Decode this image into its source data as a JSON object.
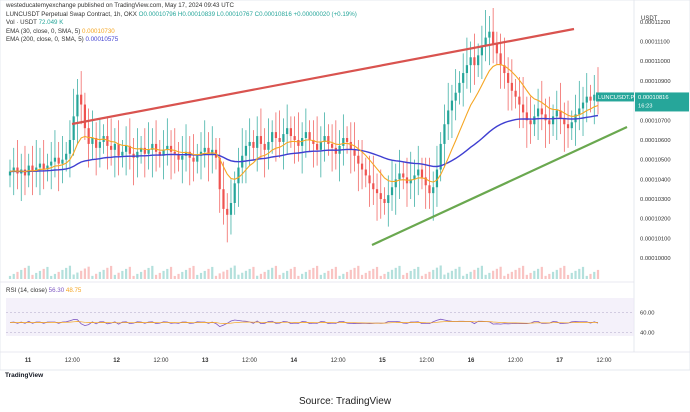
{
  "watermark": "westeducatemyexchange published on TradingView.com, May 17, 2024 09:43 UTC",
  "legend": {
    "symbol": "LUNCUSDT Perpetual Swap Contract, 1h, OKX",
    "ohlc": "O0.00010796 H0.00010839 L0.00010767 C0.00010816 +0.00000020 (+0.19%)",
    "vol": "Vol · USDT",
    "vol_value": "72.049 K",
    "ema30": "EMA (30, close, 0, SMA, 5)",
    "ema30_value": "0.00010730",
    "ema200": "EMA (200, close, 0, SMA, 5)",
    "ema200_value": "0.00010575"
  },
  "rsi": {
    "label": "RSI (14, close)",
    "value1": "56.30",
    "value2": "48.75"
  },
  "price_tag": {
    "symbol": "LUNCUSDT.P",
    "value": "0.00010816",
    "countdown": "16:23"
  },
  "currency": "USDT",
  "footer": {
    "logo": "TradingView",
    "source": "Source: TradingView"
  },
  "colors": {
    "up": "#26a69a",
    "down": "#ef5350",
    "ema30": "#f5a623",
    "ema200": "#3f3fd1",
    "resistance": "#d9534f",
    "support": "#6aa84f",
    "tag": "#26a69a"
  },
  "chart_data": {
    "type": "candlestick",
    "x_ticks": [
      "11",
      "12:00",
      "12",
      "12:00",
      "13",
      "12:00",
      "14",
      "12:00",
      "15",
      "12:00",
      "16",
      "12:00",
      "17",
      "12:00"
    ],
    "y_ticks": [
      "0.00011200",
      "0.00011100",
      "0.00011000",
      "0.00010900",
      "0.00010800",
      "0.00010700",
      "0.00010600",
      "0.00010500",
      "0.00010400",
      "0.00010300",
      "0.00010200",
      "0.00010100",
      "0.00010000"
    ],
    "ylim": [
      9.96e-05,
      0.0001125
    ],
    "rsi_ticks": [
      "60.00",
      "40.00"
    ],
    "rsi_ylim": [
      25,
      80
    ],
    "close": [
      0.0001044,
      0.0001046,
      0.0001043,
      0.0001045,
      0.0001042,
      0.0001047,
      0.0001044,
      0.0001046,
      0.0001048,
      0.0001045,
      0.0001047,
      0.0001049,
      0.0001051,
      0.0001048,
      0.000105,
      0.0001053,
      0.000106,
      0.0001072,
      0.0001083,
      0.0001078,
      0.0001066,
      0.0001058,
      0.0001061,
      0.0001056,
      0.0001059,
      0.0001062,
      0.0001057,
      0.0001055,
      0.0001058,
      0.0001052,
      0.0001054,
      0.0001057,
      0.0001053,
      0.0001051,
      0.0001054,
      0.0001056,
      0.0001053,
      0.0001055,
      0.0001058,
      0.0001054,
      0.0001052,
      0.0001055,
      0.0001057,
      0.0001054,
      0.0001053,
      0.000105,
      0.0001052,
      0.0001054,
      0.0001051,
      0.0001049,
      0.0001052,
      0.0001054,
      0.0001056,
      0.0001053,
      0.0001055,
      0.0001051,
      0.0001035,
      0.0001025,
      0.0001022,
      0.0001028,
      0.0001038,
      0.0001046,
      0.0001052,
      0.0001057,
      0.0001059,
      0.0001056,
      0.0001062,
      0.0001058,
      0.0001055,
      0.0001059,
      0.0001064,
      0.0001061,
      0.0001059,
      0.0001063,
      0.0001066,
      0.0001062,
      0.000106,
      0.0001057,
      0.0001061,
      0.0001064,
      0.000106,
      0.0001058,
      0.0001055,
      0.0001059,
      0.0001062,
      0.0001058,
      0.0001056,
      0.0001053,
      0.0001057,
      0.0001061,
      0.0001059,
      0.0001055,
      0.0001052,
      0.0001048,
      0.0001045,
      0.0001042,
      0.0001038,
      0.0001035,
      0.0001033,
      0.000103,
      0.0001028,
      0.0001032,
      0.0001036,
      0.000104,
      0.0001043,
      0.0001041,
      0.0001038,
      0.000104,
      0.0001042,
      0.0001045,
      0.0001041,
      0.0001037,
      0.0001033,
      0.0001036,
      0.0001045,
      0.0001058,
      0.0001068,
      0.0001075,
      0.000108,
      0.0001084,
      0.0001089,
      0.0001094,
      0.0001098,
      0.0001102,
      0.0001098,
      0.0001103,
      0.0001108,
      0.0001112,
      0.0001115,
      0.0001109,
      0.0001104,
      0.0001098,
      0.0001094,
      0.0001089,
      0.0001085,
      0.0001082,
      0.0001078,
      0.0001074,
      0.000107,
      0.0001068,
      0.0001072,
      0.0001076,
      0.0001073,
      0.000107,
      0.0001068,
      0.0001072,
      0.0001075,
      0.0001071,
      0.0001068,
      0.0001066,
      0.0001069,
      0.0001073,
      0.0001076,
      0.0001079,
      0.0001082,
      0.000108,
      0.0001083,
      0.0001081
    ]
  }
}
